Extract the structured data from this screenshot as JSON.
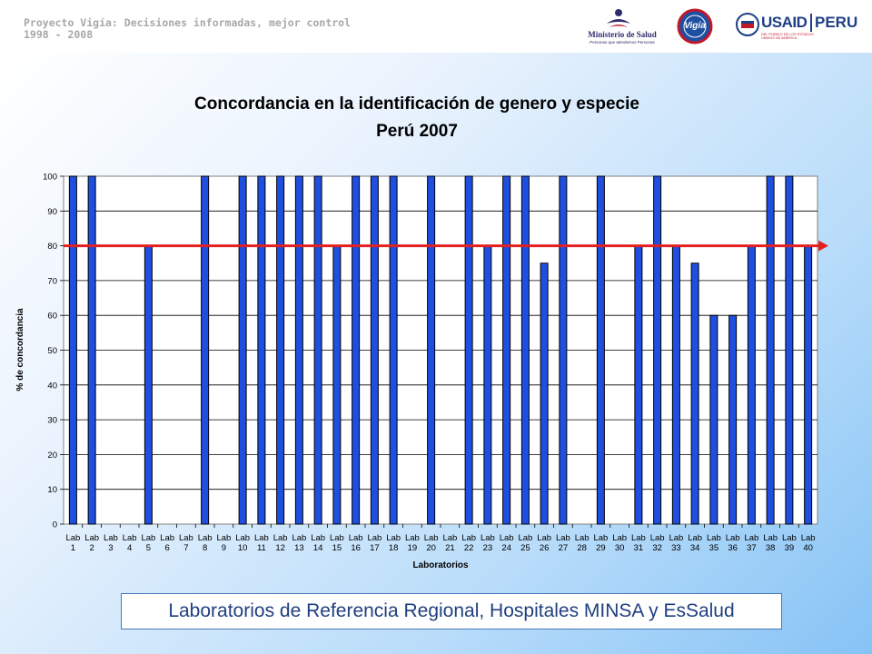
{
  "header": {
    "line1": "Proyecto Vigía: Decisiones informadas, mejor control",
    "line2": "1998 - 2008",
    "logos": {
      "minsa_name": "Ministerio de Salud",
      "minsa_tagline": "Personas que atendemos Personas",
      "vigia": "Vigía",
      "usaid": "USAID",
      "peru": "PERU",
      "usaid_tagline": "DEL PUEBLO DE LOS ESTADOS UNIDOS DE AMÉRICA"
    }
  },
  "chart_data": {
    "type": "bar",
    "title_line1": "Concordancia en la identificación de genero y especie",
    "title_line2": "Perú 2007",
    "xlabel": "Laboratorios",
    "ylabel": "% de concordancia",
    "ylim": [
      0,
      100
    ],
    "yticks": [
      "0",
      "10",
      "20",
      "30",
      "40",
      "50",
      "60",
      "70",
      "80",
      "90",
      "100"
    ],
    "grid": true,
    "reference_line": 80,
    "colors": {
      "bar": "#1f4fe0",
      "bar_edge": "#000000",
      "reference": "#e32020"
    },
    "categories": [
      {
        "top": "Lab",
        "bottom": "1"
      },
      {
        "top": "Lab",
        "bottom": "2"
      },
      {
        "top": "Lab",
        "bottom": "3"
      },
      {
        "top": "Lab",
        "bottom": "4"
      },
      {
        "top": "Lab",
        "bottom": "5"
      },
      {
        "top": "Lab",
        "bottom": "6"
      },
      {
        "top": "Lab",
        "bottom": "7"
      },
      {
        "top": "Lab",
        "bottom": "8"
      },
      {
        "top": "Lab",
        "bottom": "9"
      },
      {
        "top": "Lab",
        "bottom": "10"
      },
      {
        "top": "Lab",
        "bottom": "11"
      },
      {
        "top": "Lab",
        "bottom": "12"
      },
      {
        "top": "Lab",
        "bottom": "13"
      },
      {
        "top": "Lab",
        "bottom": "14"
      },
      {
        "top": "Lab",
        "bottom": "15"
      },
      {
        "top": "Lab",
        "bottom": "16"
      },
      {
        "top": "Lab",
        "bottom": "17"
      },
      {
        "top": "Lab",
        "bottom": "18"
      },
      {
        "top": "Lab",
        "bottom": "19"
      },
      {
        "top": "Lab",
        "bottom": "20"
      },
      {
        "top": "Lab",
        "bottom": "21"
      },
      {
        "top": "Lab",
        "bottom": "22"
      },
      {
        "top": "Lab",
        "bottom": "23"
      },
      {
        "top": "Lab",
        "bottom": "24"
      },
      {
        "top": "Lab",
        "bottom": "25"
      },
      {
        "top": "Lab",
        "bottom": "26"
      },
      {
        "top": "Lab",
        "bottom": "27"
      },
      {
        "top": "Lab",
        "bottom": "28"
      },
      {
        "top": "Lab",
        "bottom": "29"
      },
      {
        "top": "Lab",
        "bottom": "30"
      },
      {
        "top": "Lab",
        "bottom": "31"
      },
      {
        "top": "Lab",
        "bottom": "32"
      },
      {
        "top": "Lab",
        "bottom": "33"
      },
      {
        "top": "Lab",
        "bottom": "34"
      },
      {
        "top": "Lab",
        "bottom": "35"
      },
      {
        "top": "Lab",
        "bottom": "36"
      },
      {
        "top": "Lab",
        "bottom": "37"
      },
      {
        "top": "Lab",
        "bottom": "38"
      },
      {
        "top": "Lab",
        "bottom": "39"
      },
      {
        "top": "Lab",
        "bottom": "40"
      }
    ],
    "values": [
      100,
      100,
      0,
      0,
      80,
      0,
      0,
      100,
      0,
      100,
      100,
      100,
      100,
      100,
      80,
      100,
      100,
      100,
      0,
      100,
      0,
      100,
      80,
      100,
      100,
      75,
      100,
      0,
      100,
      0,
      80,
      100,
      80,
      75,
      60,
      60,
      80,
      100,
      100,
      80
    ]
  },
  "caption": "Laboratorios de Referencia Regional, Hospitales MINSA y EsSalud"
}
